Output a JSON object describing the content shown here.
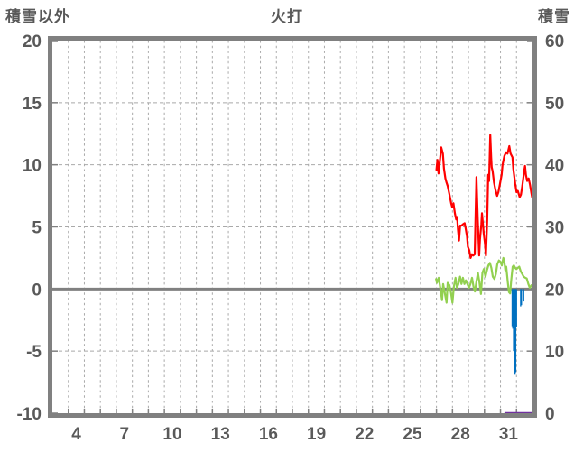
{
  "header": {
    "left_axis_title": "積雪以外",
    "title": "火打",
    "right_axis_title": "積雪"
  },
  "colors": {
    "frame": "#808080",
    "gridline": "#a9a9a9",
    "zero_line": "#808080",
    "text": "#595959",
    "background": "#ffffff",
    "red": "#ff0000",
    "green": "#92d050",
    "blue": "#0070c0",
    "purple": "#7030a0"
  },
  "chart_data": {
    "type": "line",
    "title": "火打",
    "legend": "none",
    "grid": "on",
    "x_axis": {
      "range_days": [
        3,
        33
      ],
      "tick_labels": [
        "4",
        "7",
        "10",
        "13",
        "16",
        "19",
        "22",
        "25",
        "28",
        "31"
      ],
      "tick_label_days": [
        4,
        7,
        10,
        13,
        16,
        19,
        22,
        25,
        28,
        31
      ],
      "gridline_days_start": 4,
      "gridline_days_end": 32
    },
    "left_axis": {
      "title": "積雪以外",
      "range": [
        -10,
        20
      ],
      "ticks": [
        "20",
        "15",
        "10",
        "5",
        "0",
        "-5",
        "-10"
      ],
      "tick_values": [
        20,
        15,
        10,
        5,
        0,
        -5,
        -10
      ],
      "dashed_gridline_values": [
        15,
        10,
        5,
        -5
      ],
      "solid_line_value": 0
    },
    "right_axis": {
      "title": "積雪",
      "range": [
        0,
        60
      ],
      "ticks": [
        "60",
        "50",
        "40",
        "30",
        "20",
        "10",
        "0"
      ],
      "tick_values": [
        60,
        50,
        40,
        30,
        20,
        10,
        0
      ]
    },
    "series": [
      {
        "name": "red-line",
        "type": "line",
        "axis": "left",
        "color": "#ff0000",
        "width": 2.2,
        "points": [
          [
            27.0,
            9.6
          ],
          [
            27.06,
            10.4
          ],
          [
            27.13,
            9.3
          ],
          [
            27.2,
            10.1
          ],
          [
            27.3,
            11.4
          ],
          [
            27.4,
            10.9
          ],
          [
            27.47,
            9.7
          ],
          [
            27.56,
            8.9
          ],
          [
            27.62,
            8.6
          ],
          [
            27.7,
            8.3
          ],
          [
            27.81,
            7.6
          ],
          [
            27.92,
            6.9
          ],
          [
            27.98,
            6.6
          ],
          [
            28.06,
            6.9
          ],
          [
            28.15,
            6.1
          ],
          [
            28.23,
            5.6
          ],
          [
            28.29,
            5.8
          ],
          [
            28.34,
            4.8
          ],
          [
            28.41,
            3.9
          ],
          [
            28.48,
            5.1
          ],
          [
            28.56,
            5.1
          ],
          [
            28.65,
            5.2
          ],
          [
            28.76,
            5.3
          ],
          [
            28.82,
            4.9
          ],
          [
            28.91,
            4.2
          ],
          [
            28.96,
            3.4
          ],
          [
            29.05,
            3.1
          ],
          [
            29.13,
            2.5
          ],
          [
            29.22,
            2.8
          ],
          [
            29.3,
            2.7
          ],
          [
            29.39,
            2.8
          ],
          [
            29.44,
            5.8
          ],
          [
            29.5,
            9.0
          ],
          [
            29.58,
            5.5
          ],
          [
            29.67,
            2.7
          ],
          [
            29.72,
            4.0
          ],
          [
            29.8,
            5.2
          ],
          [
            29.84,
            6.1
          ],
          [
            29.9,
            5.3
          ],
          [
            29.95,
            4.5
          ],
          [
            30.03,
            3.7
          ],
          [
            30.09,
            2.7
          ],
          [
            30.17,
            5.5
          ],
          [
            30.23,
            9.2
          ],
          [
            30.29,
            8.7
          ],
          [
            30.36,
            12.4
          ],
          [
            30.42,
            10.6
          ],
          [
            30.45,
            9.8
          ],
          [
            30.51,
            9.5
          ],
          [
            30.59,
            8.6
          ],
          [
            30.68,
            8.0
          ],
          [
            30.79,
            7.5
          ],
          [
            30.87,
            7.8
          ],
          [
            30.96,
            8.4
          ],
          [
            31.07,
            9.2
          ],
          [
            31.13,
            10.0
          ],
          [
            31.24,
            10.7
          ],
          [
            31.35,
            11.0
          ],
          [
            31.44,
            10.9
          ],
          [
            31.55,
            11.5
          ],
          [
            31.63,
            10.9
          ],
          [
            31.75,
            10.6
          ],
          [
            31.8,
            9.7
          ],
          [
            31.92,
            8.5
          ],
          [
            32.0,
            7.8
          ],
          [
            32.08,
            7.9
          ],
          [
            32.2,
            7.4
          ],
          [
            32.28,
            7.6
          ],
          [
            32.36,
            8.3
          ],
          [
            32.48,
            9.5
          ],
          [
            32.53,
            9.9
          ],
          [
            32.59,
            9.2
          ],
          [
            32.67,
            8.7
          ],
          [
            32.76,
            8.9
          ],
          [
            32.84,
            8.4
          ],
          [
            32.93,
            7.7
          ],
          [
            32.98,
            7.4
          ]
        ]
      },
      {
        "name": "green-line",
        "type": "line",
        "axis": "left",
        "color": "#92d050",
        "width": 2.2,
        "points": [
          [
            26.98,
            0.8
          ],
          [
            27.03,
            0.5
          ],
          [
            27.14,
            0.9
          ],
          [
            27.25,
            0.0
          ],
          [
            27.35,
            -0.9
          ],
          [
            27.42,
            0.4
          ],
          [
            27.53,
            -0.4
          ],
          [
            27.63,
            -1.1
          ],
          [
            27.7,
            0.5
          ],
          [
            27.81,
            0.3
          ],
          [
            27.91,
            -0.3
          ],
          [
            28.0,
            -1.1
          ],
          [
            28.09,
            0.2
          ],
          [
            28.19,
            0.9
          ],
          [
            28.28,
            0.1
          ],
          [
            28.37,
            0.4
          ],
          [
            28.47,
            1.0
          ],
          [
            28.56,
            0.4
          ],
          [
            28.65,
            0.9
          ],
          [
            28.75,
            0.4
          ],
          [
            28.84,
            0.7
          ],
          [
            28.93,
            0.4
          ],
          [
            29.03,
            0.1
          ],
          [
            29.12,
            0.4
          ],
          [
            29.22,
            0.9
          ],
          [
            29.31,
            0.2
          ],
          [
            29.4,
            -0.2
          ],
          [
            29.5,
            0.6
          ],
          [
            29.59,
            1.3
          ],
          [
            29.68,
            0.6
          ],
          [
            29.78,
            -0.4
          ],
          [
            29.87,
            1.3
          ],
          [
            29.96,
            1.6
          ],
          [
            30.06,
            1.0
          ],
          [
            30.15,
            1.5
          ],
          [
            30.24,
            1.9
          ],
          [
            30.34,
            2.1
          ],
          [
            30.43,
            1.7
          ],
          [
            30.52,
            1.0
          ],
          [
            30.62,
            0.8
          ],
          [
            30.71,
            1.2
          ],
          [
            30.8,
            2.0
          ],
          [
            30.9,
            2.3
          ],
          [
            30.99,
            2.2
          ],
          [
            31.08,
            1.9
          ],
          [
            31.18,
            2.5
          ],
          [
            31.24,
            2.2
          ],
          [
            31.3,
            1.5
          ],
          [
            31.36,
            1.8
          ],
          [
            31.46,
            0.5
          ],
          [
            31.53,
            -0.25
          ],
          [
            31.6,
            -0.35
          ],
          [
            31.67,
            0.7
          ],
          [
            31.76,
            1.8
          ],
          [
            31.84,
            1.9
          ],
          [
            31.92,
            1.7
          ],
          [
            31.99,
            1.6
          ],
          [
            32.08,
            1.7
          ],
          [
            32.17,
            1.8
          ],
          [
            32.27,
            1.4
          ],
          [
            32.36,
            1.2
          ],
          [
            32.45,
            1.0
          ],
          [
            32.55,
            0.9
          ],
          [
            32.64,
            0.85
          ],
          [
            32.74,
            0.4
          ],
          [
            32.83,
            0.1
          ],
          [
            32.93,
            0.3
          ]
        ]
      },
      {
        "name": "blue-bars",
        "type": "bar",
        "axis": "left",
        "baseline": 0,
        "color": "#0070c0",
        "bar_width_days": 0.075,
        "points": [
          [
            31.73,
            -3.0
          ],
          [
            31.77,
            -3.2
          ],
          [
            31.82,
            -5.0
          ],
          [
            31.86,
            -5.2
          ],
          [
            31.91,
            -6.9
          ],
          [
            31.95,
            -6.7
          ],
          [
            32.0,
            -3.1
          ],
          [
            32.26,
            -1.4
          ],
          [
            32.31,
            -1.3
          ],
          [
            32.45,
            -1.0
          ]
        ]
      },
      {
        "name": "purple-line",
        "type": "line",
        "axis": "right",
        "color": "#7030a0",
        "width": 2.5,
        "points": [
          [
            31.31,
            0
          ],
          [
            33.0,
            0
          ]
        ]
      }
    ]
  }
}
